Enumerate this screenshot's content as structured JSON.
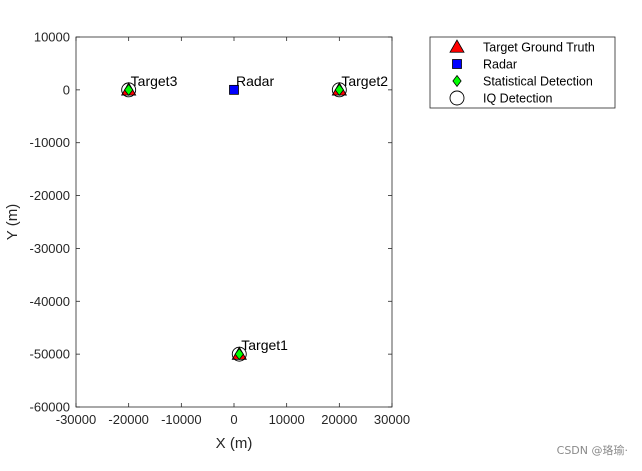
{
  "chart_data": {
    "type": "scatter",
    "title": "",
    "xlabel": "X (m)",
    "ylabel": "Y (m)",
    "xlim": [
      -30000,
      30000
    ],
    "ylim": [
      -60000,
      10000
    ],
    "xticks": [
      -30000,
      -20000,
      -10000,
      0,
      10000,
      20000,
      30000
    ],
    "xtick_labels": [
      "-30000",
      "-20000",
      "-10000",
      "0",
      "10000",
      "20000",
      "30000"
    ],
    "yticks": [
      10000,
      0,
      -10000,
      -20000,
      -30000,
      -40000,
      -50000,
      -60000
    ],
    "ytick_labels": [
      "10000",
      "0",
      "-10000",
      "-20000",
      "-30000",
      "-40000",
      "-50000",
      "-60000"
    ],
    "grid": false,
    "legend_position": "outside-top-right",
    "series": [
      {
        "name": "Target Ground Truth",
        "marker": "triangle",
        "color": "#ff0000",
        "points": [
          {
            "x": 1000,
            "y": -50000
          },
          {
            "x": 20000,
            "y": 0
          },
          {
            "x": -20000,
            "y": 0
          }
        ]
      },
      {
        "name": "Radar",
        "marker": "square",
        "color": "#0000ff",
        "points": [
          {
            "x": 0,
            "y": 0
          }
        ]
      },
      {
        "name": "Statistical Detection",
        "marker": "diamond",
        "color": "#00ff00",
        "points": [
          {
            "x": 1000,
            "y": -50000
          },
          {
            "x": 20000,
            "y": 0
          },
          {
            "x": -20000,
            "y": 0
          }
        ]
      },
      {
        "name": "IQ Detection",
        "marker": "circle",
        "color": "#ffffff",
        "points": [
          {
            "x": 1000,
            "y": -50000
          },
          {
            "x": 20000,
            "y": 0
          },
          {
            "x": -20000,
            "y": 0
          }
        ]
      }
    ],
    "annotations": [
      {
        "text": "Target1",
        "x": 1000,
        "y": -50000
      },
      {
        "text": "Target2",
        "x": 20000,
        "y": 0
      },
      {
        "text": "Target3",
        "x": -20000,
        "y": 0
      },
      {
        "text": "Radar",
        "x": 0,
        "y": 0
      }
    ]
  },
  "watermark": "CSDN @珞瑜·"
}
